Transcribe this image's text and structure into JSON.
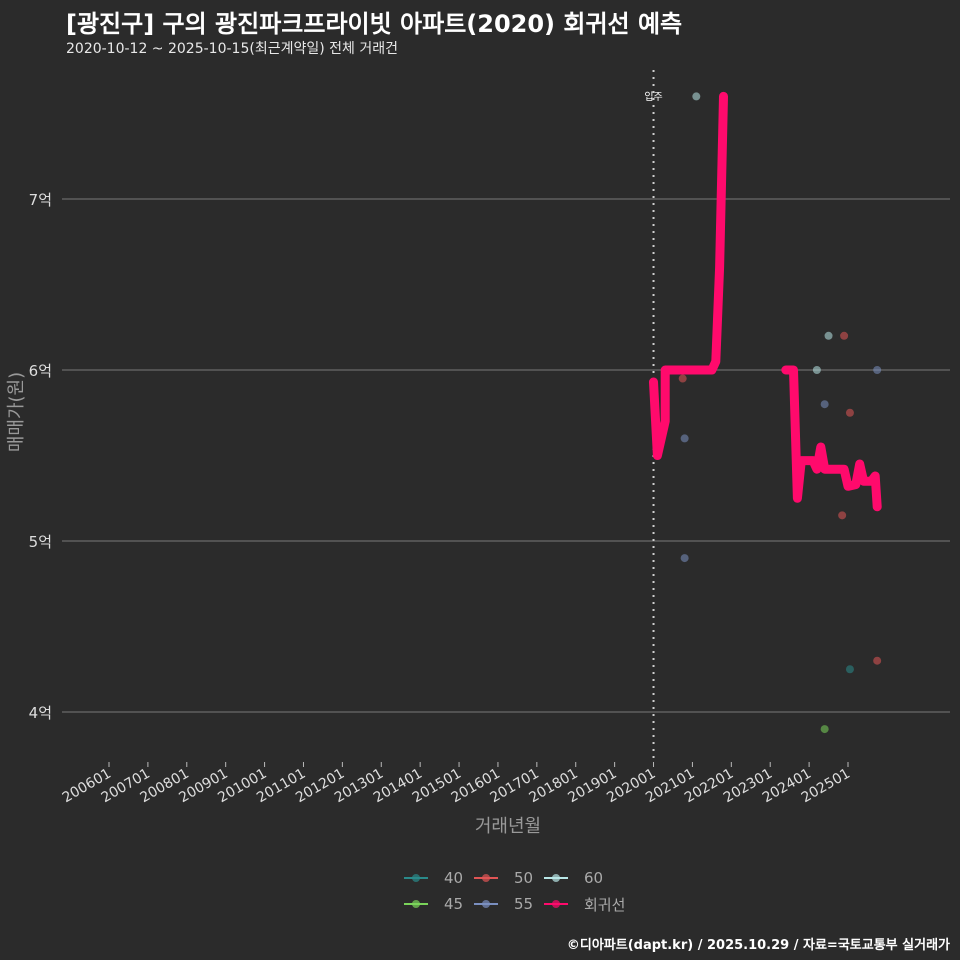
{
  "header": {
    "title": "[광진구] 구의 광진파크프라이빗 아파트(2020) 회귀선 예측",
    "subtitle": "2020-10-12 ~ 2025-10-15(최근계약일) 전체 거래건"
  },
  "footer": {
    "credit": "©디아파트(dapt.kr) / 2025.10.29 / 자료=국토교통부 실거래가"
  },
  "annotation": {
    "label": "입주",
    "x_tick": "202001"
  },
  "legend": {
    "items": [
      {
        "label": "40",
        "color": "#2a8a8a"
      },
      {
        "label": "45",
        "color": "#7ad45a"
      },
      {
        "label": "50",
        "color": "#e05555"
      },
      {
        "label": "55",
        "color": "#7a8fc0"
      },
      {
        "label": "60",
        "color": "#b8e6e6"
      },
      {
        "label": "회귀선",
        "color": "#ff0a6c"
      }
    ]
  },
  "chart_data": {
    "type": "scatter",
    "title": "[광진구] 구의 광진파크프라이빗 아파트(2020) 회귀선 예측",
    "subtitle": "2020-10-12 ~ 2025-10-15(최근계약일) 전체 거래건",
    "xlabel": "거래년월",
    "ylabel": "매매가(원)",
    "x_ticks": [
      "200601",
      "200701",
      "200801",
      "200901",
      "201001",
      "201101",
      "201201",
      "201301",
      "201401",
      "201501",
      "201601",
      "201701",
      "201801",
      "201901",
      "202001",
      "202101",
      "202201",
      "202301",
      "202401",
      "202501"
    ],
    "y_ticks": [
      "4억",
      "5억",
      "6억",
      "7억"
    ],
    "y_tick_values": [
      4.0,
      5.0,
      6.0,
      7.0
    ],
    "ylim": [
      3.75,
      7.75
    ],
    "grid": true,
    "legend_position": "bottom",
    "vline": {
      "x": "202001",
      "label": "입주"
    },
    "series": [
      {
        "name": "40",
        "color": "#2a8a8a",
        "points": [
          {
            "x": 2025.05,
            "y": 4.25
          }
        ]
      },
      {
        "name": "45",
        "color": "#7ad45a",
        "points": [
          {
            "x": 2024.4,
            "y": 3.9
          }
        ]
      },
      {
        "name": "50",
        "color": "#e05555",
        "points": [
          {
            "x": 2020.75,
            "y": 5.95
          },
          {
            "x": 2024.9,
            "y": 6.2
          },
          {
            "x": 2025.05,
            "y": 5.75
          },
          {
            "x": 2024.85,
            "y": 5.15
          },
          {
            "x": 2025.75,
            "y": 4.3
          }
        ]
      },
      {
        "name": "55",
        "color": "#7a8fc0",
        "points": [
          {
            "x": 2020.8,
            "y": 5.6
          },
          {
            "x": 2020.8,
            "y": 4.9
          },
          {
            "x": 2024.4,
            "y": 5.8
          },
          {
            "x": 2025.75,
            "y": 6.0
          }
        ]
      },
      {
        "name": "60",
        "color": "#b8e6e6",
        "points": [
          {
            "x": 2021.1,
            "y": 7.6
          },
          {
            "x": 2024.5,
            "y": 6.2
          },
          {
            "x": 2024.2,
            "y": 6.0
          }
        ]
      },
      {
        "name": "회귀선",
        "color": "#ff0a6c",
        "type": "line",
        "points": [
          {
            "x": 2020.0,
            "y": 5.93
          },
          {
            "x": 2020.1,
            "y": 5.5
          },
          {
            "x": 2020.3,
            "y": 5.7
          },
          {
            "x": 2020.3,
            "y": 6.0
          },
          {
            "x": 2021.5,
            "y": 6.0
          },
          {
            "x": 2021.6,
            "y": 6.05
          },
          {
            "x": 2021.7,
            "y": 6.6
          },
          {
            "x": 2021.8,
            "y": 7.6
          },
          {
            "x": 2023.4,
            "y": 6.0
          },
          {
            "x": 2023.6,
            "y": 6.0
          },
          {
            "x": 2023.7,
            "y": 5.25
          },
          {
            "x": 2023.8,
            "y": 5.47
          },
          {
            "x": 2024.1,
            "y": 5.47
          },
          {
            "x": 2024.2,
            "y": 5.42
          },
          {
            "x": 2024.3,
            "y": 5.55
          },
          {
            "x": 2024.4,
            "y": 5.42
          },
          {
            "x": 2024.9,
            "y": 5.42
          },
          {
            "x": 2025.0,
            "y": 5.32
          },
          {
            "x": 2025.2,
            "y": 5.33
          },
          {
            "x": 2025.3,
            "y": 5.45
          },
          {
            "x": 2025.4,
            "y": 5.35
          },
          {
            "x": 2025.6,
            "y": 5.35
          },
          {
            "x": 2025.7,
            "y": 5.38
          },
          {
            "x": 2025.75,
            "y": 5.2
          }
        ]
      }
    ]
  },
  "axes": {
    "xlabel": "거래년월",
    "ylabel": "매매가(원)"
  }
}
